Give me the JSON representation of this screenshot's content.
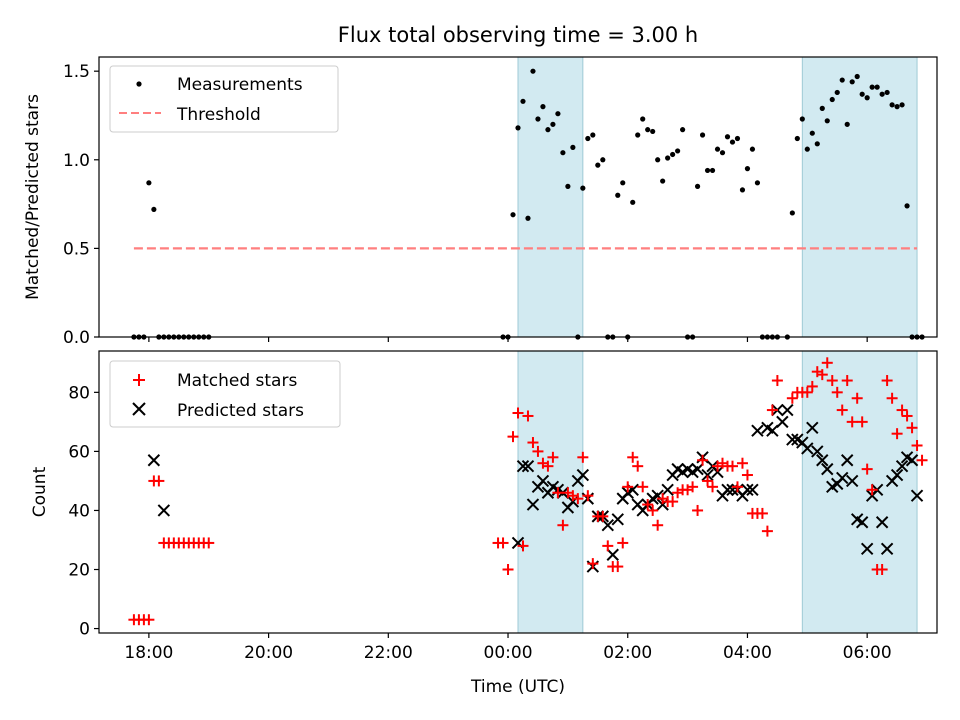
{
  "title": "Flux total observing time = 3.00 h",
  "colors": {
    "measurement": "#000000",
    "threshold": "#ff7f7f",
    "matched": "#ff0000",
    "predicted": "#000000",
    "shade_fill": "#add8e6",
    "shade_edge": "#9fcad6"
  },
  "chart_data": [
    {
      "type": "scatter",
      "ylabel": "Matched/Predicted stars",
      "ylim": [
        0,
        1.58
      ],
      "yticks": [
        0.0,
        0.5,
        1.0,
        1.5
      ],
      "ytick_labels": [
        "0.0",
        "0.5",
        "1.0",
        "1.5"
      ],
      "xlim": [
        "17:10",
        "07:10"
      ],
      "legend": {
        "position": "upper-left",
        "entries": [
          {
            "label": "Measurements",
            "marker": "dot"
          },
          {
            "label": "Threshold",
            "marker": "dashed-line"
          }
        ]
      },
      "threshold": {
        "value": 0.5,
        "x_start": "17:45",
        "x_end": "06:50"
      },
      "shaded_regions": [
        [
          "00:10",
          "01:15"
        ],
        [
          "04:55",
          "06:50"
        ]
      ],
      "series": [
        {
          "name": "Measurements",
          "x": [
            "17:45",
            "17:50",
            "17:55",
            "18:00",
            "18:05",
            "18:10",
            "18:15",
            "18:20",
            "18:25",
            "18:30",
            "18:35",
            "18:40",
            "18:45",
            "18:50",
            "18:55",
            "19:00",
            "23:55",
            "24:00",
            "24:05",
            "24:10",
            "24:15",
            "24:20",
            "24:25",
            "24:30",
            "24:35",
            "24:40",
            "24:45",
            "24:50",
            "24:55",
            "25:00",
            "25:05",
            "25:10",
            "25:15",
            "25:20",
            "25:25",
            "25:30",
            "25:35",
            "25:40",
            "25:45",
            "25:50",
            "25:55",
            "26:00",
            "26:05",
            "26:10",
            "26:15",
            "26:20",
            "26:25",
            "26:30",
            "26:35",
            "26:40",
            "26:45",
            "26:50",
            "26:55",
            "27:00",
            "27:05",
            "27:10",
            "27:15",
            "27:20",
            "27:25",
            "27:30",
            "27:35",
            "27:40",
            "27:45",
            "27:50",
            "27:55",
            "28:00",
            "28:05",
            "28:10",
            "28:15",
            "28:20",
            "28:25",
            "28:30",
            "28:40",
            "28:45",
            "28:50",
            "28:55",
            "29:00",
            "29:05",
            "29:10",
            "29:15",
            "29:20",
            "29:25",
            "29:30",
            "29:35",
            "29:40",
            "29:45",
            "29:50",
            "29:55",
            "30:00",
            "30:05",
            "30:10",
            "30:15",
            "30:20",
            "30:25",
            "30:30",
            "30:35",
            "30:40",
            "30:45",
            "30:50",
            "30:55"
          ],
          "y": [
            0,
            0,
            0,
            0.87,
            0.72,
            0,
            0,
            0,
            0,
            0,
            0,
            0,
            0,
            0,
            0,
            0,
            0,
            0,
            0.69,
            1.18,
            1.33,
            0.67,
            1.5,
            1.23,
            1.3,
            1.17,
            1.2,
            1.26,
            1.04,
            0.85,
            1.07,
            0,
            0.84,
            1.12,
            1.14,
            0.97,
            1.0,
            0,
            0,
            0.8,
            0.87,
            0,
            0.76,
            1.14,
            1.23,
            1.17,
            1.16,
            1.0,
            0.88,
            1.01,
            1.03,
            1.05,
            1.17,
            0,
            0,
            0.85,
            1.14,
            0.94,
            0.94,
            1.06,
            1.04,
            1.13,
            1.1,
            1.12,
            0.83,
            0.95,
            1.06,
            0.87,
            0,
            0,
            0,
            0,
            0,
            0.7,
            1.12,
            1.23,
            1.06,
            1.15,
            1.09,
            1.29,
            1.22,
            1.34,
            1.38,
            1.45,
            1.2,
            1.44,
            1.47,
            1.37,
            1.35,
            1.41,
            1.41,
            1.37,
            1.38,
            1.31,
            1.3,
            1.31,
            0.74,
            0,
            0,
            0
          ]
        }
      ]
    },
    {
      "type": "scatter",
      "xlabel": "Time (UTC)",
      "ylabel": "Count",
      "ylim": [
        -1.5,
        94
      ],
      "yticks": [
        0,
        20,
        40,
        60,
        80
      ],
      "ytick_labels": [
        "0",
        "20",
        "40",
        "60",
        "80"
      ],
      "xlim": [
        "17:10",
        "07:10"
      ],
      "xticks": [
        "18:00",
        "20:00",
        "22:00",
        "24:00",
        "26:00",
        "28:00",
        "30:00"
      ],
      "xtick_labels": [
        "18:00",
        "20:00",
        "22:00",
        "00:00",
        "02:00",
        "04:00",
        "06:00"
      ],
      "legend": {
        "position": "upper-left",
        "entries": [
          {
            "label": "Matched stars",
            "marker": "plus"
          },
          {
            "label": "Predicted stars",
            "marker": "cross"
          }
        ]
      },
      "shaded_regions": [
        [
          "00:10",
          "01:15"
        ],
        [
          "04:55",
          "06:50"
        ]
      ],
      "series": [
        {
          "name": "Matched stars",
          "marker": "plus",
          "x": [
            "17:45",
            "17:50",
            "17:55",
            "18:00",
            "18:05",
            "18:10",
            "18:15",
            "18:20",
            "18:25",
            "18:30",
            "18:35",
            "18:40",
            "18:45",
            "18:50",
            "18:55",
            "19:00",
            "23:50",
            "23:55",
            "24:00",
            "24:05",
            "24:10",
            "24:15",
            "24:20",
            "24:25",
            "24:30",
            "24:35",
            "24:40",
            "24:45",
            "24:50",
            "24:55",
            "25:00",
            "25:05",
            "25:10",
            "25:15",
            "25:20",
            "25:25",
            "25:30",
            "25:35",
            "25:40",
            "25:45",
            "25:50",
            "25:55",
            "26:00",
            "26:05",
            "26:10",
            "26:15",
            "26:20",
            "26:25",
            "26:30",
            "26:35",
            "26:40",
            "26:45",
            "26:50",
            "26:55",
            "27:00",
            "27:05",
            "27:10",
            "27:15",
            "27:20",
            "27:25",
            "27:30",
            "27:35",
            "27:40",
            "27:45",
            "27:50",
            "27:55",
            "28:00",
            "28:05",
            "28:10",
            "28:15",
            "28:20",
            "28:25",
            "28:30",
            "28:45",
            "28:50",
            "28:55",
            "29:00",
            "29:05",
            "29:10",
            "29:15",
            "29:20",
            "29:25",
            "29:30",
            "29:35",
            "29:40",
            "29:45",
            "29:50",
            "29:55",
            "30:00",
            "30:05",
            "30:10",
            "30:15",
            "30:20",
            "30:25",
            "30:30",
            "30:35",
            "30:40",
            "30:45",
            "30:50",
            "30:55"
          ],
          "y": [
            3,
            3,
            3,
            3,
            50,
            50,
            29,
            29,
            29,
            29,
            29,
            29,
            29,
            29,
            29,
            29,
            29,
            29,
            20,
            65,
            73,
            28,
            72,
            63,
            60,
            56,
            55,
            58,
            46,
            35,
            46,
            45,
            44,
            58,
            45,
            22,
            38,
            38,
            28,
            21,
            21,
            29,
            48,
            58,
            55,
            48,
            42,
            40,
            35,
            44,
            43,
            43,
            46,
            47,
            47,
            48,
            40,
            57,
            50,
            48,
            55,
            56,
            55,
            55,
            48,
            56,
            52,
            39,
            39,
            39,
            33,
            74,
            84,
            78,
            80,
            80,
            80,
            82,
            87,
            86,
            90,
            84,
            80,
            74,
            84,
            70,
            78,
            70,
            54,
            47,
            20,
            20,
            84,
            78,
            66,
            74,
            72,
            68,
            62,
            57
          ]
        },
        {
          "name": "Predicted stars",
          "marker": "cross",
          "x": [
            "18:05",
            "18:15",
            "24:10",
            "24:15",
            "24:20",
            "24:25",
            "24:30",
            "24:35",
            "24:40",
            "24:45",
            "24:50",
            "24:55",
            "25:00",
            "25:05",
            "25:10",
            "25:15",
            "25:20",
            "25:25",
            "25:30",
            "25:35",
            "25:40",
            "25:45",
            "25:50",
            "25:55",
            "26:00",
            "26:05",
            "26:10",
            "26:15",
            "26:20",
            "26:25",
            "26:30",
            "26:35",
            "26:40",
            "26:45",
            "26:50",
            "26:55",
            "27:00",
            "27:05",
            "27:10",
            "27:15",
            "27:20",
            "27:25",
            "27:30",
            "27:35",
            "27:40",
            "27:45",
            "27:50",
            "27:55",
            "28:00",
            "28:05",
            "28:10",
            "28:20",
            "28:25",
            "28:30",
            "28:35",
            "28:40",
            "28:45",
            "28:50",
            "28:55",
            "29:00",
            "29:05",
            "29:10",
            "29:15",
            "29:20",
            "29:25",
            "29:30",
            "29:35",
            "29:40",
            "29:45",
            "29:50",
            "29:55",
            "30:00",
            "30:05",
            "30:10",
            "30:15",
            "30:20",
            "30:25",
            "30:30",
            "30:35",
            "30:40",
            "30:45",
            "30:50"
          ],
          "y": [
            57,
            40,
            29,
            55,
            55,
            42,
            48,
            50,
            46,
            48,
            47,
            46,
            41,
            43,
            50,
            52,
            44,
            21,
            38,
            38,
            35,
            25,
            37,
            44,
            46,
            47,
            42,
            40,
            42,
            44,
            45,
            42,
            47,
            52,
            54,
            53,
            54,
            53,
            54,
            58,
            52,
            55,
            53,
            45,
            47,
            47,
            47,
            45,
            47,
            47,
            67,
            68,
            67,
            74,
            70,
            74,
            64,
            64,
            63,
            61,
            68,
            60,
            57,
            54,
            48,
            49,
            51,
            57,
            50,
            37,
            36,
            27,
            45,
            47,
            36,
            27,
            50,
            52,
            55,
            58,
            57,
            45
          ]
        }
      ]
    }
  ]
}
